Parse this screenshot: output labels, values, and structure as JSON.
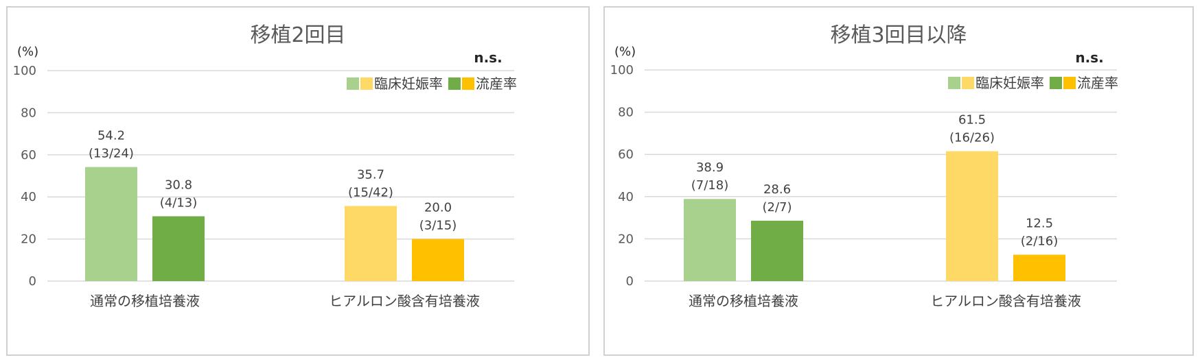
{
  "charts": [
    {
      "type": "bar",
      "title": "移植2回目",
      "unit": "(%)",
      "ns": "n.s.",
      "ylim": [
        0,
        100
      ],
      "yticks": [
        0,
        20,
        40,
        60,
        80,
        100
      ],
      "categories": [
        "通常の移植培養液",
        "ヒアルロン酸含有培養液"
      ],
      "series": [
        {
          "name": "臨床妊娠率",
          "values": [
            54.2,
            35.7
          ],
          "labels": [
            "(13/24)",
            "(15/42)"
          ]
        },
        {
          "name": "流産率",
          "values": [
            30.8,
            20.0
          ],
          "labels": [
            "(4/13)",
            "(3/15)"
          ]
        }
      ],
      "colors": [
        [
          "#a9d18e",
          "#70ad47"
        ],
        [
          "#ffd966",
          "#ffc000"
        ]
      ],
      "legend": {
        "position": "top-right"
      },
      "grid": true
    },
    {
      "type": "bar",
      "title": "移植3回目以降",
      "unit": "(%)",
      "ns": "n.s.",
      "ylim": [
        0,
        100
      ],
      "yticks": [
        0,
        20,
        40,
        60,
        80,
        100
      ],
      "categories": [
        "通常の移植培養液",
        "ヒアルロン酸含有培養液"
      ],
      "series": [
        {
          "name": "臨床妊娠率",
          "values": [
            38.9,
            61.5
          ],
          "labels": [
            "(7/18)",
            "(16/26)"
          ]
        },
        {
          "name": "流産率",
          "values": [
            28.6,
            12.5
          ],
          "labels": [
            "(2/7)",
            "(2/16)"
          ]
        }
      ],
      "colors": [
        [
          "#a9d18e",
          "#70ad47"
        ],
        [
          "#ffd966",
          "#ffc000"
        ]
      ],
      "legend": {
        "position": "top-right"
      },
      "grid": true
    }
  ]
}
